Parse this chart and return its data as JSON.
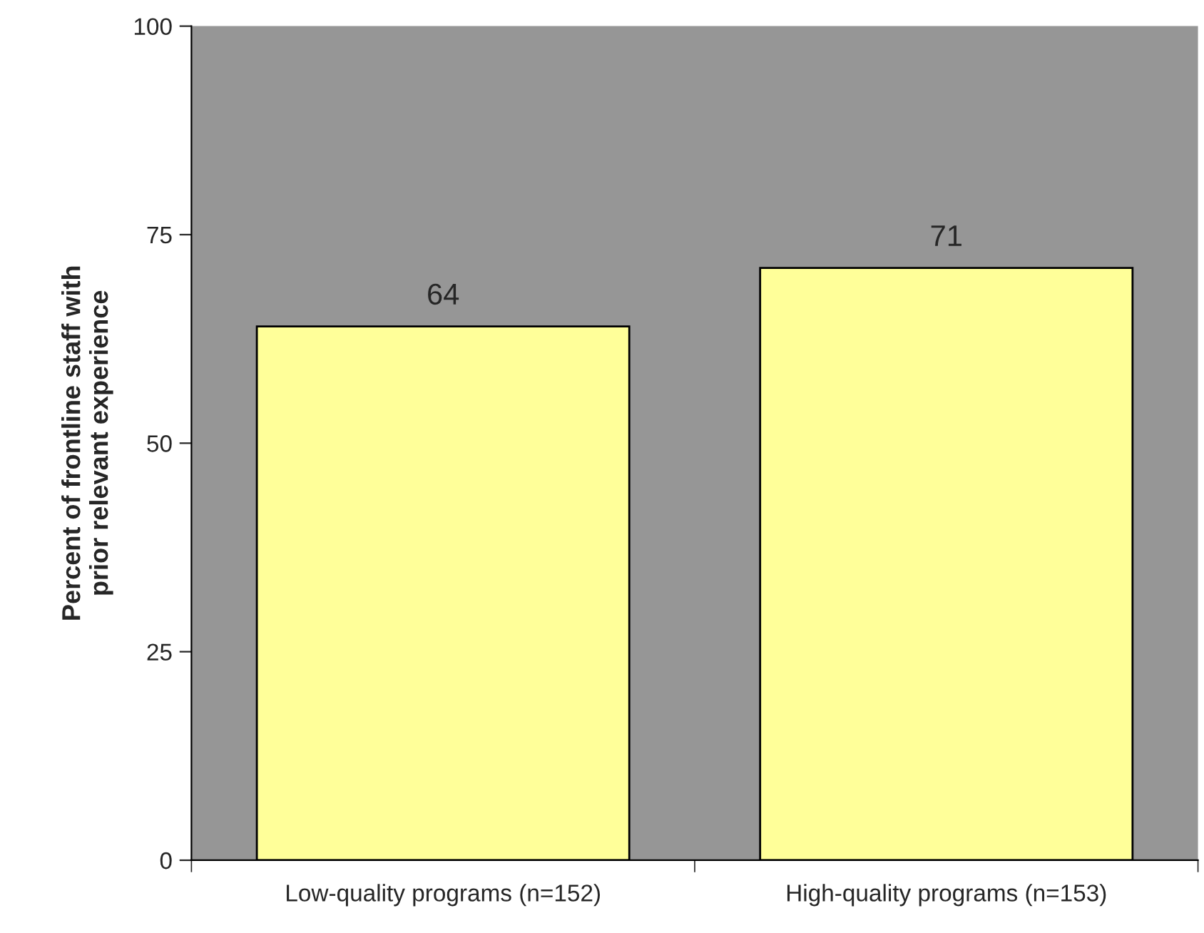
{
  "chart_data": {
    "type": "bar",
    "ylabel": "Percent of frontline staff with\nprior relevant experience",
    "categories": [
      "Low-quality programs (n=152)",
      "High-quality programs (n=153)"
    ],
    "values": [
      64,
      71
    ],
    "color": "#ffff99",
    "ylim": [
      0,
      100
    ],
    "yticks": [
      0,
      25,
      50,
      75,
      100
    ],
    "grid": false,
    "data_labels": true
  }
}
